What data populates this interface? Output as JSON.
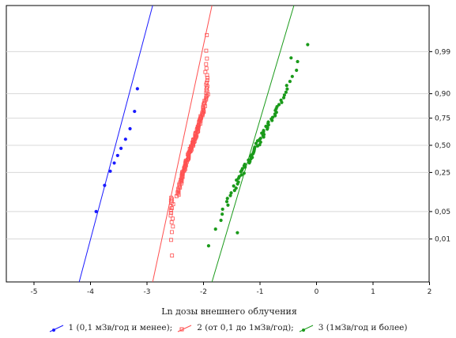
{
  "chart_data": {
    "type": "scatter",
    "subtype": "normal probability plot",
    "xlabel": "Ln дозы внешнего облучения",
    "x_ticks": [
      -5,
      -4,
      -3,
      -2,
      -1,
      0,
      1,
      2
    ],
    "y_tick_labels": [
      "0,99",
      "0,90",
      "0,75",
      "0,50",
      "0,25",
      "0,05",
      "0,01"
    ],
    "y_tick_probs": [
      0.99,
      0.9,
      0.75,
      0.5,
      0.25,
      0.05,
      0.01
    ],
    "xlim": [
      -5.5,
      2
    ],
    "grid": "horizontal",
    "legend_position": "bottom",
    "series": [
      {
        "name": "1 (0,1 мЗв/год и менее);",
        "color": "#1a1aff",
        "marker": "circle",
        "fit_line": {
          "x1": -4.2,
          "x2": -2.9
        },
        "points": [
          [
            -3.9,
            0.05
          ],
          [
            -3.75,
            0.16
          ],
          [
            -3.65,
            0.26
          ],
          [
            -3.58,
            0.33
          ],
          [
            -3.52,
            0.4
          ],
          [
            -3.46,
            0.47
          ],
          [
            -3.38,
            0.56
          ],
          [
            -3.3,
            0.66
          ],
          [
            -3.22,
            0.8
          ],
          [
            -3.17,
            0.92
          ]
        ]
      },
      {
        "name": "2 (от 0,1 до 1мЗв/год);",
        "color": "#ff5050",
        "marker": "square",
        "fit_line": {
          "x1": -2.9,
          "x2": -1.85
        },
        "points": []
      },
      {
        "name": "3 (1мЗв/год и более)",
        "color": "#1a9a1a",
        "marker": "circle",
        "fit_line": {
          "x1": -1.85,
          "x2": -0.4
        },
        "points": []
      }
    ]
  }
}
